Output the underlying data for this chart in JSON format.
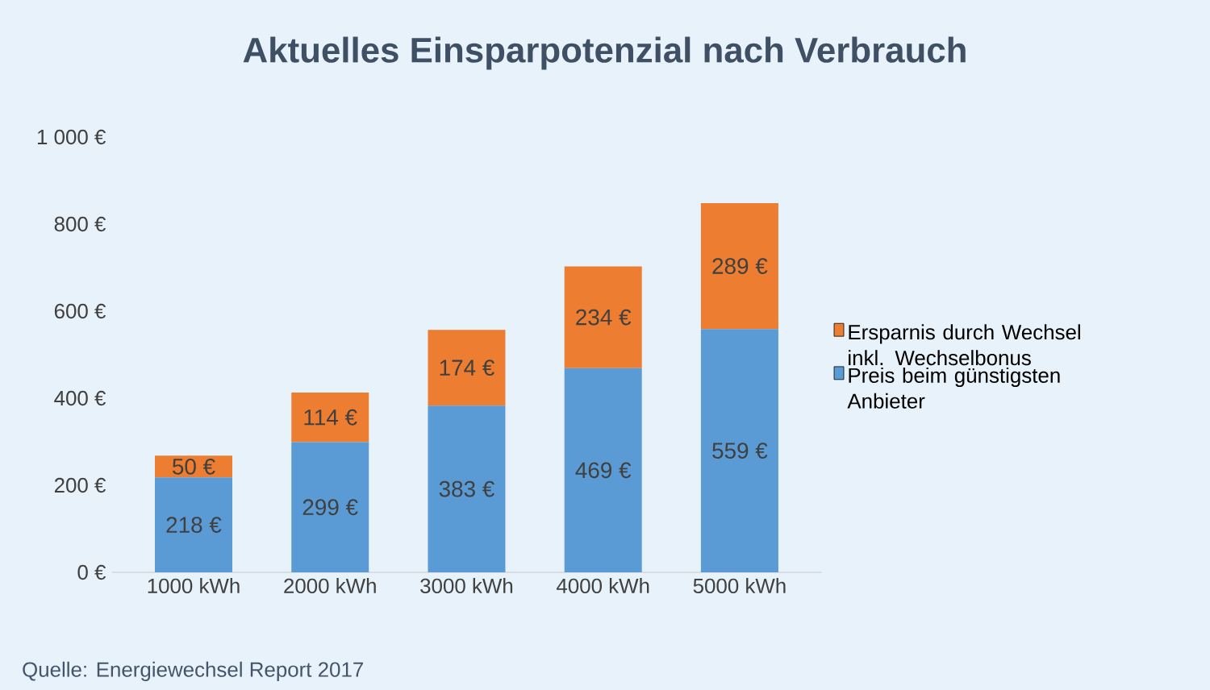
{
  "chart_data": {
    "type": "bar",
    "stacked": true,
    "title": "Aktuelles Einsparpotenzial nach Verbrauch",
    "categories": [
      "1000 kWh",
      "2000 kWh",
      "3000 kWh",
      "4000 kWh",
      "5000 kWh"
    ],
    "series": [
      {
        "name": "Preis beim günstigsten Anbieter",
        "color": "#5b9bd5",
        "values": [
          218,
          299,
          383,
          469,
          559
        ],
        "value_labels": [
          "218 €",
          "299 €",
          "383 €",
          "469 €",
          "559 €"
        ]
      },
      {
        "name": "Ersparnis durch Wechsel inkl. Wechselbonus",
        "color": "#ed7d31",
        "values": [
          50,
          114,
          174,
          234,
          289
        ],
        "value_labels": [
          "50 €",
          "114 €",
          "174 €",
          "234 €",
          "289 €"
        ]
      }
    ],
    "ylim": [
      0,
      1000
    ],
    "yticks": [
      {
        "value": 0,
        "label": "0 €"
      },
      {
        "value": 200,
        "label": "200 €"
      },
      {
        "value": 400,
        "label": "400 €"
      },
      {
        "value": 600,
        "label": "600 €"
      },
      {
        "value": 800,
        "label": "800 €"
      },
      {
        "value": 1000,
        "label": "1 000 €"
      }
    ],
    "grid": false,
    "legend": "right",
    "annotations": [
      "Quelle: Energiewechsel Report 2017"
    ]
  }
}
